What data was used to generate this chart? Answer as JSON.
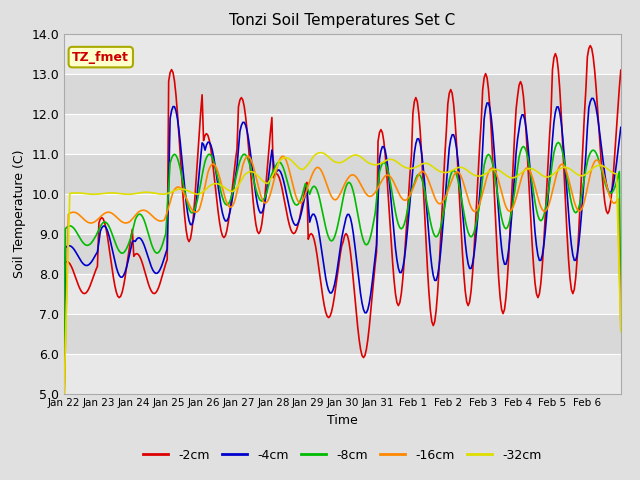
{
  "title": "Tonzi Soil Temperatures Set C",
  "xlabel": "Time",
  "ylabel": "Soil Temperature (C)",
  "ylim": [
    5.0,
    14.0
  ],
  "yticks": [
    5.0,
    6.0,
    7.0,
    8.0,
    9.0,
    10.0,
    11.0,
    12.0,
    13.0,
    14.0
  ],
  "annotation_text": "TZ_fmet",
  "annotation_text_color": "#cc0000",
  "series_colors": [
    "#dd0000",
    "#0000cc",
    "#00bb00",
    "#ff8800",
    "#dddd00"
  ],
  "series_labels": [
    "-2cm",
    "-4cm",
    "-8cm",
    "-16cm",
    "-32cm"
  ],
  "series_linewidth": 1.2,
  "fig_facecolor": "#e0e0e0",
  "axes_facecolor": "#e8e8e8",
  "grid_color": "#ffffff",
  "num_points": 384,
  "x_tick_labels": [
    "Jan 22",
    "Jan 23",
    "Jan 24",
    "Jan 25",
    "Jan 26",
    "Jan 27",
    "Jan 28",
    "Jan 29",
    "Jan 30",
    "Jan 31",
    "Feb 1",
    "Feb 2",
    "Feb 3",
    "Feb 4",
    "Feb 5",
    "Feb 6"
  ],
  "x_tick_positions": [
    0,
    24,
    48,
    72,
    96,
    120,
    144,
    168,
    192,
    216,
    240,
    264,
    288,
    312,
    336,
    360
  ],
  "band_colors": [
    "#e8e8e8",
    "#d8d8d8"
  ]
}
